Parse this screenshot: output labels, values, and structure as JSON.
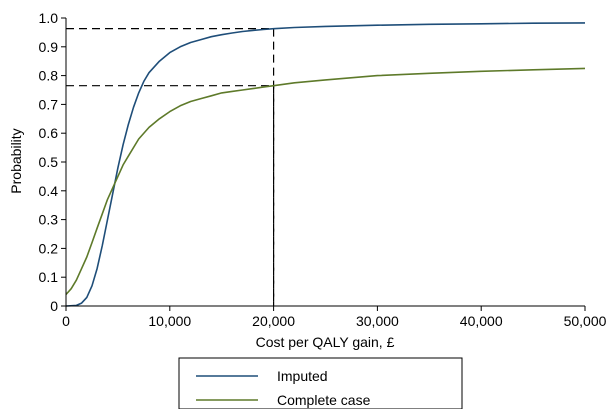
{
  "chart_data": {
    "type": "line",
    "title": "",
    "xlabel": "Cost per QALY gain, £",
    "ylabel": "Probability",
    "xlim": [
      0,
      50000
    ],
    "ylim": [
      0,
      1.0
    ],
    "x_ticks": [
      0,
      10000,
      20000,
      30000,
      40000,
      50000
    ],
    "x_tick_labels": [
      "0",
      "10,000",
      "20,000",
      "30,000",
      "40,000",
      "50,000"
    ],
    "y_ticks": [
      0,
      0.1,
      0.2,
      0.3,
      0.4,
      0.5,
      0.6,
      0.7,
      0.8,
      0.9,
      1.0
    ],
    "y_tick_labels": [
      "0",
      "0.1",
      "0.2",
      "0.3",
      "0.4",
      "0.5",
      "0.6",
      "0.7",
      "0.8",
      "0.9",
      "1.0"
    ],
    "grid": false,
    "legend_position": "bottom",
    "series": [
      {
        "name": "Imputed",
        "color": "#1f4e79",
        "x": [
          0,
          1000,
          1500,
          2000,
          2500,
          3000,
          3500,
          4000,
          4500,
          5000,
          5500,
          6000,
          6500,
          7000,
          7500,
          8000,
          9000,
          10000,
          11000,
          12000,
          13000,
          14000,
          15000,
          16000,
          17000,
          18000,
          19000,
          20000,
          22000,
          25000,
          30000,
          35000,
          40000,
          45000,
          50000
        ],
        "y": [
          0,
          0.002,
          0.01,
          0.03,
          0.07,
          0.13,
          0.21,
          0.3,
          0.39,
          0.48,
          0.56,
          0.63,
          0.69,
          0.74,
          0.78,
          0.81,
          0.85,
          0.88,
          0.9,
          0.915,
          0.925,
          0.935,
          0.942,
          0.948,
          0.953,
          0.957,
          0.96,
          0.963,
          0.967,
          0.971,
          0.975,
          0.978,
          0.98,
          0.982,
          0.983
        ]
      },
      {
        "name": "Complete case",
        "color": "#5e7a2a",
        "x": [
          0,
          500,
          1000,
          1500,
          2000,
          2500,
          3000,
          3500,
          4000,
          4500,
          5000,
          5500,
          6000,
          7000,
          8000,
          9000,
          10000,
          11000,
          12000,
          13000,
          14000,
          15000,
          16000,
          17000,
          18000,
          19000,
          20000,
          22000,
          25000,
          30000,
          35000,
          40000,
          45000,
          50000
        ],
        "y": [
          0.04,
          0.06,
          0.09,
          0.13,
          0.17,
          0.22,
          0.27,
          0.32,
          0.37,
          0.41,
          0.45,
          0.49,
          0.52,
          0.58,
          0.62,
          0.65,
          0.675,
          0.695,
          0.71,
          0.72,
          0.73,
          0.74,
          0.745,
          0.75,
          0.755,
          0.76,
          0.765,
          0.775,
          0.785,
          0.8,
          0.808,
          0.815,
          0.82,
          0.825
        ]
      }
    ],
    "reference_lines": [
      {
        "x": 20000,
        "y": 0.963
      },
      {
        "x": 20000,
        "y": 0.765
      }
    ]
  }
}
